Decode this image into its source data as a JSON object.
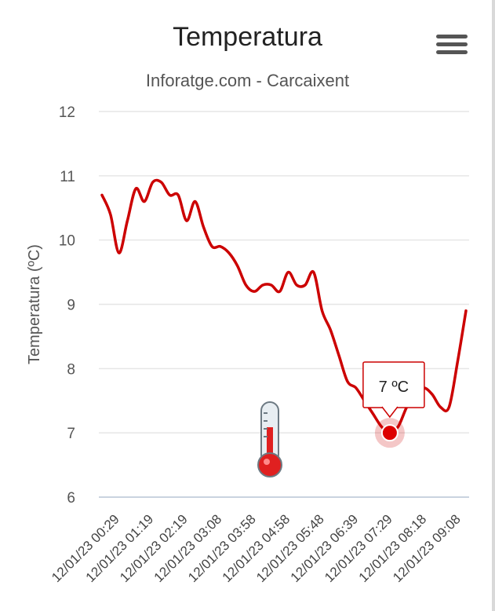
{
  "chart_data": {
    "type": "line",
    "title": "Temperatura",
    "subtitle": "Inforatge.com - Carcaixent",
    "ylabel": "Temperatura (ºC)",
    "ylim": [
      6,
      12
    ],
    "yticks": [
      "6",
      "7",
      "8",
      "9",
      "10",
      "11",
      "12"
    ],
    "grid": true,
    "x_labels": [
      "12/01/23 00:29",
      "12/01/23 01:19",
      "12/01/23 02:19",
      "12/01/23 03:08",
      "12/01/23 03:58",
      "12/01/23 04:58",
      "12/01/23 05:48",
      "12/01/23 06:39",
      "12/01/23 07:29",
      "12/01/23 08:18",
      "12/01/23 09:08"
    ],
    "series": [
      {
        "color": "#cc0000",
        "values": [
          10.7,
          10.4,
          9.8,
          10.3,
          10.8,
          10.6,
          10.9,
          10.9,
          10.7,
          10.7,
          10.3,
          10.6,
          10.2,
          9.9,
          9.9,
          9.8,
          9.6,
          9.3,
          9.2,
          9.3,
          9.3,
          9.2,
          9.5,
          9.3,
          9.3,
          9.5,
          8.9,
          8.6,
          8.2,
          7.8,
          7.7,
          7.5,
          7.3,
          7.1,
          7.0,
          7.1,
          7.4,
          7.6,
          7.7,
          7.6,
          7.4,
          7.4,
          8.1,
          8.9
        ]
      }
    ],
    "tooltip": {
      "label": "7 ºC",
      "index": 34
    }
  },
  "decor": {
    "icon": "thermometer-icon",
    "menu_icon": "hamburger-menu-icon"
  }
}
